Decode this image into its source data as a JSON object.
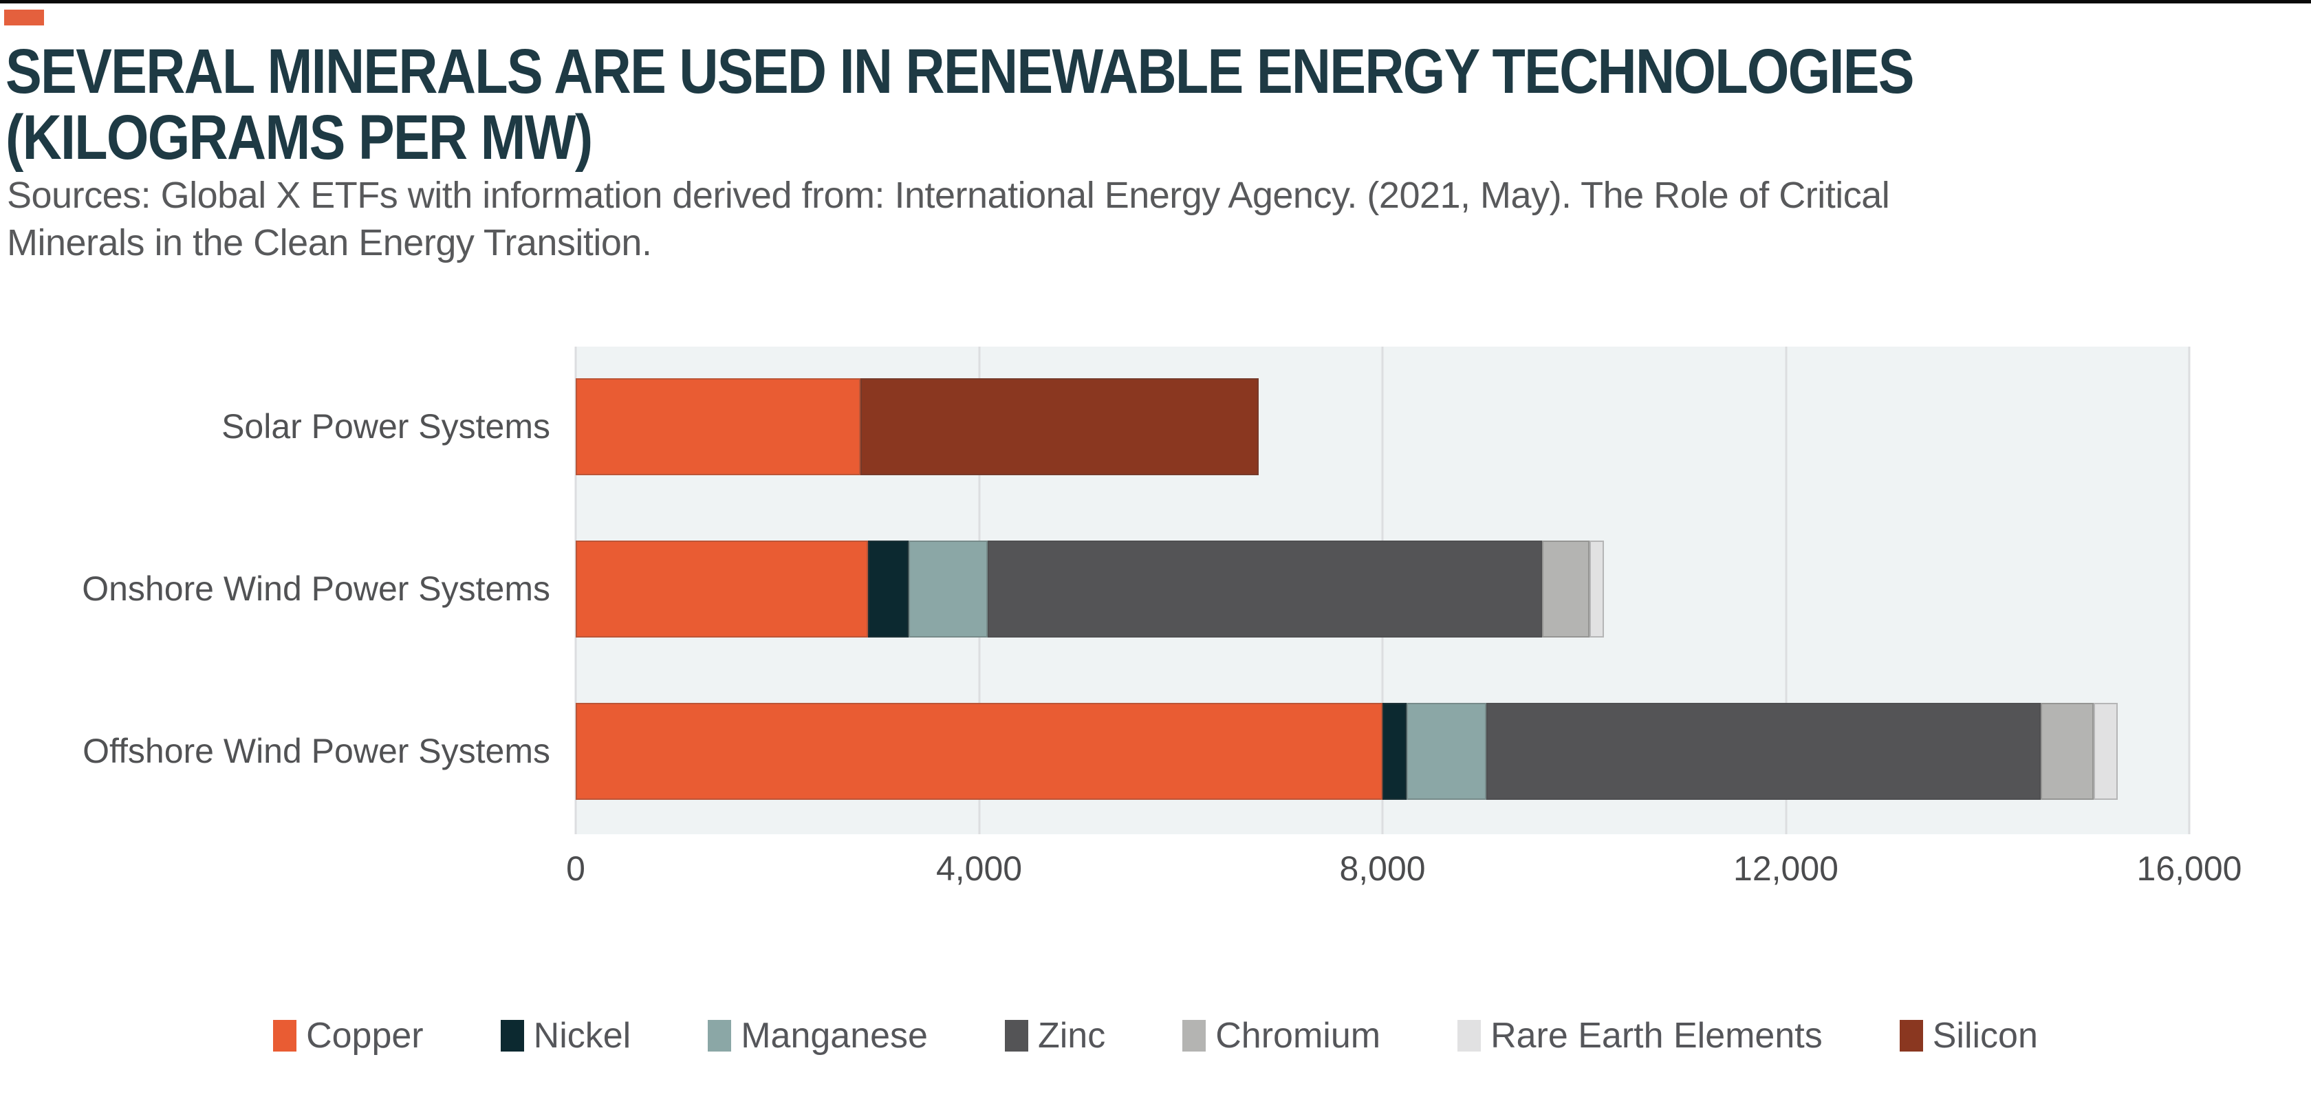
{
  "header": {
    "title_line1": "SEVERAL MINERALS ARE USED IN RENEWABLE ENERGY TECHNOLOGIES",
    "title_line2": "(KILOGRAMS PER MW)",
    "source_line1": "Sources: Global X ETFs with information derived from: International Energy Agency. (2021, May). The Role of Critical",
    "source_line2": "Minerals in the Clean Energy Transition.",
    "title_color": "#1e3a44",
    "source_color": "#58595b",
    "accent_color": "#e4603d",
    "top_border_color": "#0a0a0a"
  },
  "chart_data": {
    "type": "bar",
    "orientation": "horizontal",
    "stacked": true,
    "units": "kilograms per MW",
    "xlim": [
      0,
      16000
    ],
    "x_tick_values": [
      0,
      4000,
      8000,
      12000,
      16000
    ],
    "x_tick_labels": [
      "0",
      "4,000",
      "8,000",
      "12,000",
      "16,000"
    ],
    "grid": "vertical",
    "plot_background": "#eff3f4",
    "gridline_color": "#dcdee0",
    "legend_position": "bottom",
    "categories": [
      "Solar Power Systems",
      "Onshore Wind Power Systems",
      "Offshore Wind Power Systems"
    ],
    "series": [
      {
        "name": "Copper",
        "color": "#e95c33",
        "values": [
          2822,
          2900,
          8000
        ]
      },
      {
        "name": "Nickel",
        "color": "#0c2930",
        "values": [
          0,
          404,
          240
        ]
      },
      {
        "name": "Manganese",
        "color": "#8ba7a6",
        "values": [
          0,
          780,
          790
        ]
      },
      {
        "name": "Zinc",
        "color": "#545456",
        "values": [
          0,
          5500,
          5500
        ]
      },
      {
        "name": "Chromium",
        "color": "#b4b4b2",
        "values": [
          0,
          470,
          525
        ]
      },
      {
        "name": "Rare Earth Elements",
        "color": "#e1e1e2",
        "values": [
          0,
          140,
          239
        ]
      },
      {
        "name": "Silicon",
        "color": "#8a3720",
        "values": [
          3948,
          0,
          0
        ]
      }
    ],
    "category_totals": [
      6770,
      10194,
      15294
    ]
  }
}
